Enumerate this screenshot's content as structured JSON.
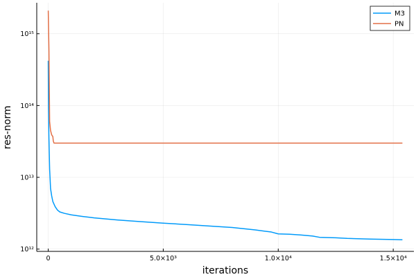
{
  "chart_data": {
    "type": "line",
    "title": "",
    "xlabel": "iterations",
    "ylabel": "res-norm",
    "xlim": [
      -500,
      15900
    ],
    "ylim": [
      930000000000.0,
      2700000000000000.0
    ],
    "yscale": "log",
    "grid": true,
    "legend": "top-right",
    "x_ticks": [
      {
        "value": 0,
        "label": "0"
      },
      {
        "value": 5000,
        "label": "5.0×10³"
      },
      {
        "value": 10000,
        "label": "1.0×10⁴"
      },
      {
        "value": 15000,
        "label": "1.5×10⁴"
      }
    ],
    "y_ticks": [
      {
        "value": 1000000000000.0,
        "label": "10¹²"
      },
      {
        "value": 10000000000000.0,
        "label": "10¹³"
      },
      {
        "value": 100000000000000.0,
        "label": "10¹⁴"
      },
      {
        "value": 1000000000000000.0,
        "label": "10¹⁵"
      }
    ],
    "series": [
      {
        "name": "M3",
        "color": "#009AFA",
        "x": [
          0,
          10,
          30,
          60,
          100,
          150,
          200,
          300,
          400,
          500,
          700,
          1000,
          1500,
          2000,
          3000,
          4000,
          5000,
          6000,
          7000,
          8000,
          9000,
          9700,
          10000,
          10500,
          11000,
          11500,
          11800,
          12500,
          13000,
          14000,
          15000,
          15400
        ],
        "y": [
          420000000000000.0,
          90000000000000.0,
          35000000000000.0,
          13000000000000.0,
          7000000000000.0,
          5500000000000.0,
          4600000000000.0,
          3900000000000.0,
          3500000000000.0,
          3300000000000.0,
          3150000000000.0,
          3000000000000.0,
          2850000000000.0,
          2720000000000.0,
          2550000000000.0,
          2420000000000.0,
          2300000000000.0,
          2200000000000.0,
          2100000000000.0,
          2000000000000.0,
          1850000000000.0,
          1730000000000.0,
          1630000000000.0,
          1610000000000.0,
          1570000000000.0,
          1520000000000.0,
          1460000000000.0,
          1440000000000.0,
          1410000000000.0,
          1380000000000.0,
          1360000000000.0,
          1350000000000.0
        ]
      },
      {
        "name": "PN",
        "color": "#E26F46",
        "x": [
          0,
          30,
          60,
          100,
          150,
          200,
          220,
          250,
          300,
          400,
          1000,
          5000,
          10000,
          15000,
          15400
        ],
        "y": [
          2100000000000000.0,
          600000000000000.0,
          60000000000000.0,
          45000000000000.0,
          39000000000000.0,
          37000000000000.0,
          32000000000000.0,
          30000000000000.0,
          30000000000000.0,
          30000000000000.0,
          30000000000000.0,
          30000000000000.0,
          30000000000000.0,
          30000000000000.0,
          30000000000000.0
        ]
      }
    ]
  }
}
